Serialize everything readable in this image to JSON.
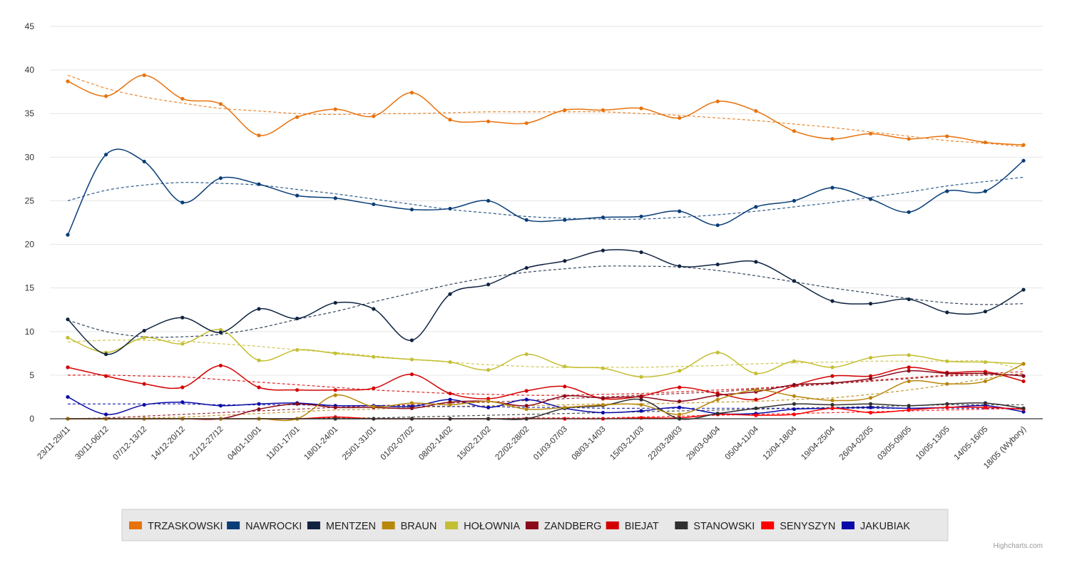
{
  "credits": "Highcharts.com",
  "chart_data": {
    "type": "line",
    "title": "",
    "xlabel": "",
    "ylabel": "",
    "ylim": [
      0,
      45
    ],
    "yticks": [
      0,
      5,
      10,
      15,
      20,
      25,
      30,
      35,
      40,
      45
    ],
    "grid": true,
    "curve": "spline",
    "trendlines": "dashed",
    "legend_position": "bottom",
    "categories": [
      "23/11-29/11",
      "30/11-06/12",
      "07/12-13/12",
      "14/12-20/12",
      "21/12-27/12",
      "04/01-10/01",
      "11/01-17/01",
      "18/01-24/01",
      "25/01-31/01",
      "01/02-07/02",
      "08/02-14/02",
      "15/02-21/02",
      "22/02-28/02",
      "01/03-07/03",
      "08/03-14/03",
      "15/03-21/03",
      "22/03-28/03",
      "29/03-04/04",
      "05/04-11/04",
      "12/04-18/04",
      "19/04-25/04",
      "26/04-02/05",
      "03/05-09/05",
      "10/05-13/05",
      "14/05-16/05",
      "18/05 (Wybory)"
    ],
    "series": [
      {
        "name": "TRZASKOWSKI",
        "color": "#E8720C",
        "values": [
          38.7,
          37.0,
          39.4,
          36.7,
          36.1,
          32.5,
          34.6,
          35.5,
          34.7,
          37.4,
          34.3,
          34.1,
          33.9,
          35.4,
          35.4,
          35.6,
          34.5,
          36.4,
          35.3,
          33.0,
          32.1,
          32.7,
          32.1,
          32.4,
          31.7,
          31.4
        ],
        "trend": [
          39.4,
          37.9,
          36.9,
          36.2,
          35.6,
          35.3,
          35.0,
          34.9,
          35.0,
          35.0,
          35.1,
          35.2,
          35.2,
          35.2,
          35.2,
          35.0,
          34.8,
          34.5,
          34.2,
          33.8,
          33.4,
          32.9,
          32.4,
          31.9,
          31.6,
          31.2
        ]
      },
      {
        "name": "NAWROCKI",
        "color": "#083D77",
        "values": [
          21.1,
          30.3,
          29.5,
          24.8,
          27.6,
          26.9,
          25.6,
          25.3,
          24.6,
          24.0,
          24.1,
          25.0,
          22.8,
          22.8,
          23.1,
          23.2,
          23.8,
          22.2,
          24.3,
          25.0,
          26.5,
          25.2,
          23.7,
          26.1,
          26.1,
          29.6
        ],
        "trend": [
          25.0,
          26.2,
          26.8,
          27.1,
          27.0,
          26.8,
          26.3,
          25.8,
          25.2,
          24.6,
          24.0,
          23.6,
          23.2,
          23.0,
          22.9,
          22.9,
          23.1,
          23.4,
          23.8,
          24.3,
          24.8,
          25.4,
          26.0,
          26.7,
          27.2,
          27.7
        ]
      },
      {
        "name": "MENTZEN",
        "color": "#0F2340",
        "values": [
          11.4,
          7.4,
          10.1,
          11.6,
          9.9,
          12.6,
          11.5,
          13.3,
          12.6,
          9.0,
          14.3,
          15.4,
          17.3,
          18.1,
          19.3,
          19.1,
          17.5,
          17.7,
          18.0,
          15.8,
          13.5,
          13.2,
          13.7,
          12.2,
          12.3,
          14.8
        ],
        "trend": [
          11.3,
          10.0,
          9.4,
          9.4,
          9.7,
          10.4,
          11.4,
          12.3,
          13.4,
          14.4,
          15.4,
          16.2,
          16.8,
          17.2,
          17.5,
          17.5,
          17.4,
          17.0,
          16.4,
          15.7,
          15.0,
          14.4,
          13.8,
          13.3,
          13.1,
          13.2
        ]
      },
      {
        "name": "BRAUN",
        "color": "#B8860B",
        "values": [
          0.0,
          0.0,
          0.0,
          0.0,
          0.0,
          0.0,
          0.0,
          2.7,
          1.4,
          1.8,
          1.6,
          2.0,
          1.1,
          1.3,
          1.6,
          1.6,
          0.5,
          2.2,
          3.3,
          2.6,
          2.1,
          2.4,
          4.3,
          4.0,
          4.3,
          6.3
        ],
        "trend": [
          0.0,
          0.0,
          0.1,
          0.2,
          0.4,
          0.6,
          0.8,
          1.0,
          1.1,
          1.3,
          1.4,
          1.5,
          1.5,
          1.6,
          1.7,
          1.7,
          1.8,
          1.9,
          2.0,
          2.2,
          2.4,
          2.8,
          3.3,
          3.9,
          4.6,
          5.2
        ]
      },
      {
        "name": "HOŁOWNIA",
        "color": "#C4BE32",
        "values": [
          9.3,
          7.6,
          9.3,
          8.6,
          10.2,
          6.7,
          7.9,
          7.5,
          7.1,
          6.8,
          6.5,
          5.6,
          7.4,
          6.0,
          5.8,
          4.8,
          5.5,
          7.6,
          5.2,
          6.6,
          5.9,
          7.0,
          7.3,
          6.6,
          6.5,
          6.3
        ],
        "trend": [
          8.8,
          9.0,
          9.0,
          8.9,
          8.6,
          8.3,
          7.9,
          7.6,
          7.2,
          6.8,
          6.5,
          6.2,
          6.0,
          5.9,
          5.9,
          5.9,
          6.0,
          6.1,
          6.3,
          6.4,
          6.5,
          6.6,
          6.6,
          6.6,
          6.6,
          5.6
        ]
      },
      {
        "name": "ZANDBERG",
        "color": "#8B0A1A",
        "values": [
          0.0,
          0.0,
          0.0,
          0.0,
          0.0,
          1.1,
          1.7,
          1.3,
          1.3,
          1.2,
          1.9,
          2.0,
          1.5,
          2.6,
          2.4,
          2.5,
          2.0,
          2.7,
          3.1,
          3.9,
          4.1,
          4.6,
          5.5,
          5.2,
          5.2,
          4.9
        ],
        "trend": [
          0.0,
          0.1,
          0.3,
          0.5,
          0.7,
          0.9,
          1.1,
          1.3,
          1.5,
          1.6,
          1.8,
          1.9,
          2.1,
          2.3,
          2.5,
          2.7,
          2.9,
          3.1,
          3.4,
          3.7,
          4.0,
          4.3,
          4.6,
          4.9,
          5.0,
          5.1
        ]
      },
      {
        "name": "BIEJAT",
        "color": "#D40000",
        "values": [
          5.9,
          4.9,
          4.0,
          3.6,
          6.1,
          3.6,
          3.3,
          3.3,
          3.5,
          5.1,
          2.9,
          2.3,
          3.2,
          3.7,
          2.3,
          2.6,
          3.6,
          2.9,
          2.2,
          3.8,
          4.9,
          4.9,
          5.9,
          5.3,
          5.4,
          4.3
        ],
        "trend": [
          5.0,
          5.0,
          4.9,
          4.8,
          4.5,
          4.2,
          3.9,
          3.6,
          3.3,
          3.1,
          2.9,
          2.8,
          2.7,
          2.7,
          2.8,
          2.9,
          3.1,
          3.3,
          3.5,
          3.8,
          4.1,
          4.4,
          4.7,
          5.0,
          5.2,
          5.4
        ]
      },
      {
        "name": "STANOWSKI",
        "color": "#2F2F2F",
        "values": [
          0.0,
          0.0,
          0.0,
          0.0,
          0.0,
          0.0,
          0.0,
          0.0,
          0.0,
          0.0,
          0.0,
          0.0,
          0.0,
          1.2,
          1.5,
          2.2,
          0.0,
          0.6,
          1.2,
          1.7,
          1.6,
          1.7,
          1.5,
          1.7,
          1.8,
          1.2
        ],
        "trend": [
          0.0,
          0.0,
          0.0,
          0.0,
          0.0,
          0.0,
          0.0,
          0.1,
          0.1,
          0.2,
          0.3,
          0.4,
          0.5,
          0.6,
          0.7,
          0.8,
          0.9,
          1.0,
          1.1,
          1.2,
          1.3,
          1.4,
          1.5,
          1.6,
          1.6,
          1.6
        ]
      },
      {
        "name": "SENYSZYN",
        "color": "#FF0000",
        "values": [
          0.0,
          0.0,
          0.0,
          0.0,
          0.0,
          0.0,
          0.0,
          0.2,
          0.0,
          0.0,
          0.0,
          0.0,
          0.0,
          0.0,
          0.0,
          0.1,
          0.1,
          0.5,
          0.4,
          0.5,
          1.2,
          0.7,
          1.0,
          1.3,
          1.3,
          1.1
        ],
        "trend": [
          0.0,
          0.0,
          0.0,
          0.0,
          0.0,
          0.0,
          0.0,
          0.0,
          0.0,
          0.0,
          0.0,
          0.0,
          0.1,
          0.1,
          0.1,
          0.2,
          0.3,
          0.4,
          0.5,
          0.6,
          0.7,
          0.8,
          0.9,
          1.0,
          1.1,
          1.2
        ]
      },
      {
        "name": "JAKUBIAK",
        "color": "#0A0AA8",
        "values": [
          2.5,
          0.5,
          1.6,
          1.9,
          1.5,
          1.7,
          1.8,
          1.5,
          1.5,
          1.4,
          2.2,
          1.3,
          2.2,
          1.2,
          0.7,
          0.9,
          1.3,
          0.6,
          0.6,
          1.1,
          1.2,
          1.3,
          1.2,
          1.3,
          1.5,
          0.8
        ],
        "trend": [
          1.7,
          1.7,
          1.7,
          1.7,
          1.6,
          1.6,
          1.6,
          1.5,
          1.5,
          1.5,
          1.4,
          1.4,
          1.3,
          1.3,
          1.2,
          1.2,
          1.2,
          1.2,
          1.2,
          1.2,
          1.2,
          1.2,
          1.2,
          1.2,
          1.2,
          1.2
        ]
      }
    ]
  }
}
